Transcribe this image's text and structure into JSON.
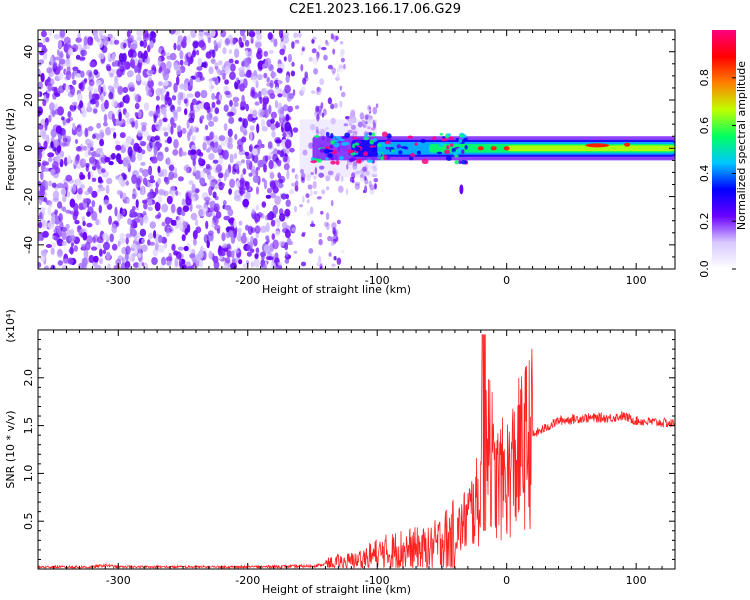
{
  "title": "C2E1.2023.166.17.06.G29",
  "chart_data": [
    {
      "type": "heatmap",
      "xlabel": "Height of straight line (km)",
      "ylabel": "Frequency (Hz)",
      "xlim": [
        -362,
        130
      ],
      "ylim": [
        -50,
        49
      ],
      "xticks": [
        "-300",
        "-200",
        "-100",
        "0",
        "100"
      ],
      "yticks": [
        "-40",
        "-20",
        "0",
        "20",
        "40"
      ],
      "colorbar": {
        "label": "Normalized spectral amplitude",
        "range": [
          0,
          1
        ],
        "ticks": [
          "0.0",
          "0.2",
          "0.4",
          "0.6",
          "0.8"
        ],
        "colors": [
          "#ffffff",
          "#d8c8ff",
          "#6a00ff",
          "#0000ff",
          "#00c8ff",
          "#00ff60",
          "#c0ff00",
          "#ff8000",
          "#ff0000",
          "#ff0080"
        ]
      },
      "description_regions": [
        {
          "x": [
            -362,
            -165
          ],
          "pattern": "broadband scattered noise, purple"
        },
        {
          "x": [
            -165,
            -100
          ],
          "pattern": "transition, noise plus emerging line near 0 Hz"
        },
        {
          "x": [
            -100,
            130
          ],
          "pattern": "narrow tone near 0 Hz, amplitude rising to red"
        }
      ]
    },
    {
      "type": "line",
      "xlabel": "Height of straight line (km)",
      "ylabel": "SNR (10 * v/v)",
      "scale_label": "(x10⁴)",
      "xlim": [
        -362,
        130
      ],
      "ylim": [
        0,
        2.5
      ],
      "xticks": [
        "-300",
        "-200",
        "-100",
        "0",
        "100"
      ],
      "yticks": [
        "0.5",
        "1.0",
        "1.5",
        "2.0"
      ],
      "color": "#ff2020",
      "series": [
        {
          "x": [
            -362,
            -320,
            -310,
            -300,
            -250,
            -200,
            -150,
            -130,
            -120,
            -100,
            -80,
            -60,
            -40,
            -30,
            -20,
            -18,
            -10,
            0,
            10,
            20,
            40,
            60,
            80,
            90,
            100,
            130
          ],
          "y": [
            0.02,
            0.02,
            0.04,
            0.02,
            0.02,
            0.02,
            0.03,
            0.07,
            0.08,
            0.15,
            0.2,
            0.2,
            0.35,
            0.55,
            0.75,
            2.4,
            0.9,
            0.95,
            1.2,
            1.4,
            1.55,
            1.58,
            1.58,
            1.6,
            1.55,
            1.52
          ]
        }
      ]
    }
  ]
}
